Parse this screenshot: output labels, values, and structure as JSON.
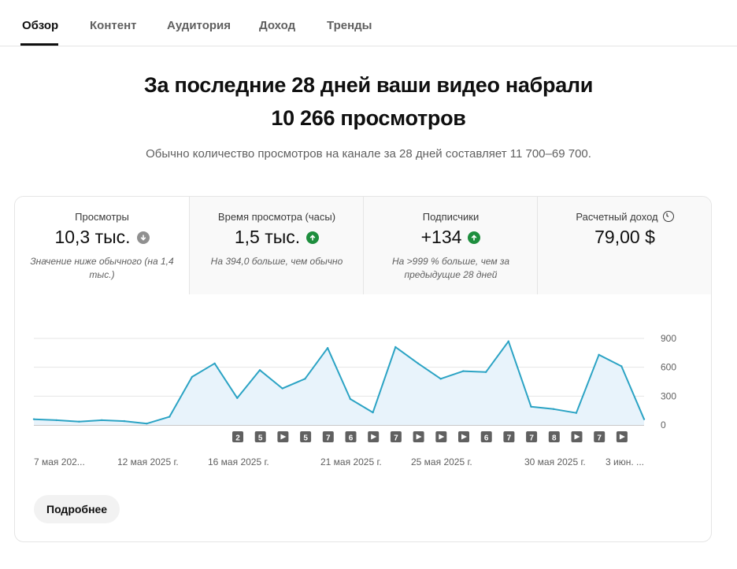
{
  "tabs": [
    {
      "label": "Обзор",
      "active": true
    },
    {
      "label": "Контент",
      "active": false
    },
    {
      "label": "Аудитория",
      "active": false
    },
    {
      "label": "Доход",
      "active": false
    },
    {
      "label": "Тренды",
      "active": false
    }
  ],
  "headline": {
    "line1": "За последние 28 дней ваши видео набрали",
    "line2": "10 266 просмотров",
    "sub": "Обычно количество просмотров на канале за 28 дней составляет 11 700–69 700."
  },
  "metrics": [
    {
      "title": "Просмотры",
      "value": "10,3 тыс.",
      "trend": "down",
      "note": "Значение ниже обычного (на 1,4 тыс.)"
    },
    {
      "title": "Время просмотра (часы)",
      "value": "1,5 тыс.",
      "trend": "up",
      "note": "На 394,0 больше, чем обычно"
    },
    {
      "title": "Подписчики",
      "value": "+134",
      "trend": "up",
      "note": "На >999 % больше, чем за предыдущие 28 дней"
    },
    {
      "title": "Расчетный доход",
      "value": "79,00 $",
      "trend": "none",
      "note": "",
      "icon": "clock-icon"
    }
  ],
  "chart_data": {
    "type": "area",
    "x_tick_labels": [
      "7 мая 202...",
      "12 мая 2025 г.",
      "16 мая 2025 г.",
      "21 мая 2025 г.",
      "25 мая 2025 г.",
      "30 мая 2025 г.",
      "3 июн. ..."
    ],
    "y_ticks": [
      0,
      300,
      600,
      900
    ],
    "ylim": [
      0,
      900
    ],
    "values": [
      60,
      50,
      35,
      50,
      40,
      15,
      85,
      500,
      640,
      280,
      570,
      380,
      480,
      800,
      270,
      130,
      810,
      640,
      480,
      560,
      550,
      870,
      190,
      165,
      125,
      730,
      610,
      60
    ],
    "color": "#2ba3c4",
    "fill": "#e8f3fb",
    "upload_markers": [
      "2",
      "5",
      "▶",
      "5",
      "7",
      "6",
      "▶",
      "7",
      "▶",
      "▶",
      "▶",
      "6",
      "7",
      "7",
      "8",
      "▶",
      "7",
      "▶"
    ]
  },
  "button": {
    "label": "Подробнее"
  }
}
